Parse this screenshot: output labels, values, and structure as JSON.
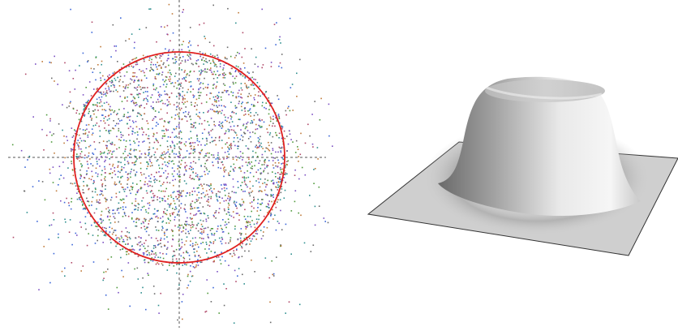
{
  "scatter_panel": {
    "point_colors": [
      "#7b4fc2",
      "#3b66d8",
      "#4f9a3c",
      "#c07a3a",
      "#b04a6a",
      "#6a6a6a",
      "#2f8f8f"
    ],
    "circle_color": "#e02020",
    "crosshair_color": "#555555"
  },
  "surface_panel": {
    "plane_color": "#cfcfcf",
    "outline_color": "#333333",
    "bump_highlight": "#f2f2f2",
    "bump_shadow": "#6e6e6e"
  }
}
